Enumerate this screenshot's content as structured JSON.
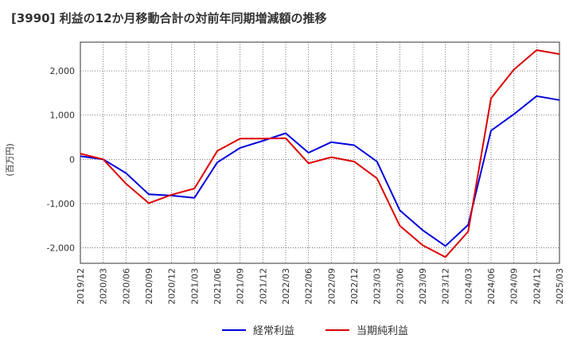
{
  "chart_data": {
    "type": "line",
    "title": "[3990]  利益の12か月移動合計の対前年同期増減額の推移",
    "ylabel": "(百万円)",
    "xlabel": "",
    "ylim": [
      -2350,
      2650
    ],
    "yticks": [
      2000,
      1000,
      0,
      -1000,
      -2000
    ],
    "ytick_labels": [
      "2,000",
      "1,000",
      "0",
      "-1,000",
      "-2,000"
    ],
    "x_tick_labels": [
      "2019/12",
      "2020/03",
      "2020/06",
      "2020/09",
      "2020/12",
      "2021/03",
      "2021/06",
      "2021/09",
      "2021/12",
      "2022/03",
      "2022/06",
      "2022/09",
      "2022/12",
      "2023/03",
      "2023/06",
      "2023/09",
      "2023/12",
      "2024/03",
      "2024/06",
      "2024/09",
      "2024/12",
      "2025/03"
    ],
    "grid": true,
    "legend_position": "bottom",
    "series": [
      {
        "name": "経常利益",
        "color": "#0000dd",
        "values": [
          70,
          0,
          -310,
          -790,
          -820,
          -870,
          -70,
          260,
          420,
          590,
          150,
          390,
          320,
          -50,
          -1150,
          -1600,
          -1960,
          -1480,
          650,
          1020,
          1430,
          1340
        ]
      },
      {
        "name": "当期純利益",
        "color": "#dd0000",
        "values": [
          130,
          0,
          -550,
          -990,
          -800,
          -660,
          190,
          470,
          470,
          480,
          -90,
          50,
          -50,
          -430,
          -1500,
          -1940,
          -2210,
          -1630,
          1380,
          2030,
          2470,
          2380
        ]
      }
    ]
  }
}
